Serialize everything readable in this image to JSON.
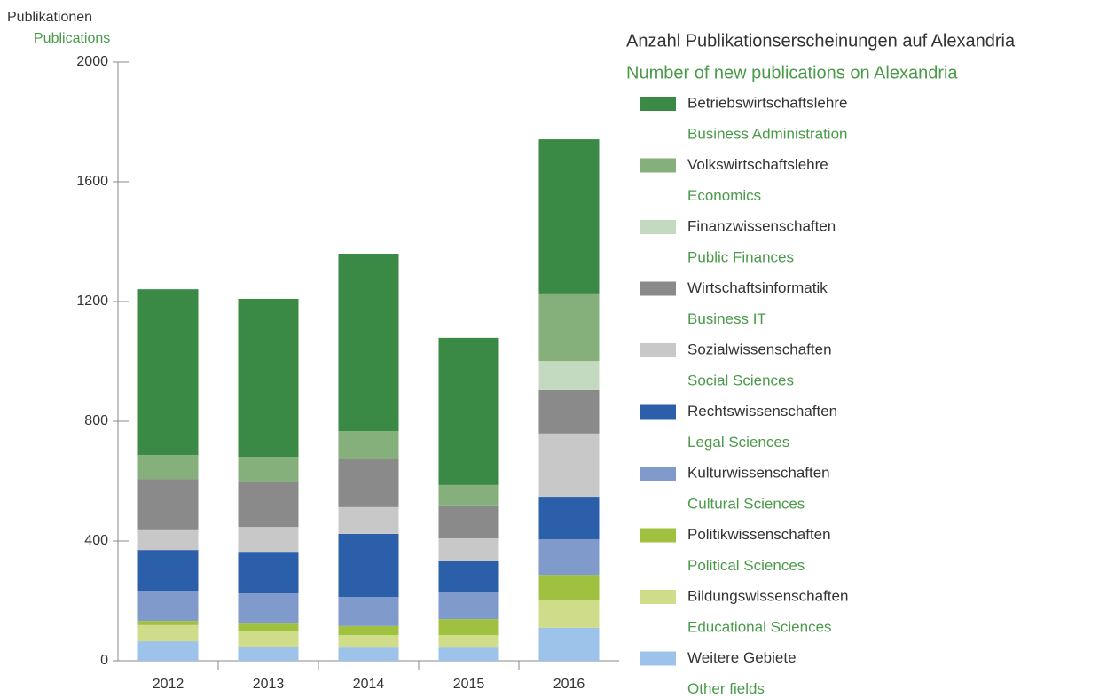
{
  "chart_data": {
    "type": "stacked-bar",
    "y_label": "Publikationen",
    "y_label_en": "Publications",
    "title": "Anzahl Publikationserscheinungen auf Alexandria",
    "title_en": "Number of new publications on Alexandria",
    "categories": [
      "2012",
      "2013",
      "2014",
      "2015",
      "2016"
    ],
    "ylim": [
      0,
      2000
    ],
    "yticks": [
      0,
      400,
      800,
      1200,
      1600,
      2000
    ],
    "series": [
      {
        "name": "Betriebswirtschaftslehre",
        "name_en": "Business Administration",
        "color": "#3a8a45",
        "values": [
          554,
          528,
          593,
          492,
          515
        ]
      },
      {
        "name": "Volkswirtschaftslehre",
        "name_en": "Economics",
        "color": "#86b07b",
        "values": [
          80,
          85,
          94,
          68,
          226
        ]
      },
      {
        "name": "Finanzwissenschaften",
        "name_en": "Public Finances",
        "color": "#c4dac0",
        "values": [
          0,
          0,
          0,
          0,
          97
        ]
      },
      {
        "name": "Wirtschaftsinformatik",
        "name_en": "Business IT",
        "color": "#8a8a8a",
        "values": [
          171,
          149,
          160,
          110,
          145
        ]
      },
      {
        "name": "Sozialwissenschaften",
        "name_en": "Social Sciences",
        "color": "#c8c8c8",
        "values": [
          66,
          83,
          89,
          77,
          211
        ]
      },
      {
        "name": "Rechtswissenschaften",
        "name_en": "Legal Sciences",
        "color": "#2b5faa",
        "values": [
          136,
          139,
          211,
          104,
          142
        ]
      },
      {
        "name": "Kulturwissenschaften",
        "name_en": "Cultural Sciences",
        "color": "#7f9acb",
        "values": [
          101,
          101,
          97,
          89,
          119
        ]
      },
      {
        "name": "Politikwissenschaften",
        "name_en": "Political Sciences",
        "color": "#a0c040",
        "values": [
          14,
          26,
          30,
          53,
          86
        ]
      },
      {
        "name": "Bildungswissenschaften",
        "name_en": "Educational Sciences",
        "color": "#cfdc8a",
        "values": [
          54,
          51,
          42,
          42,
          91
        ]
      },
      {
        "name": "Weitere Gebiete",
        "name_en": "Other fields",
        "color": "#9dc3ea",
        "values": [
          65,
          47,
          44,
          44,
          110
        ]
      }
    ]
  }
}
